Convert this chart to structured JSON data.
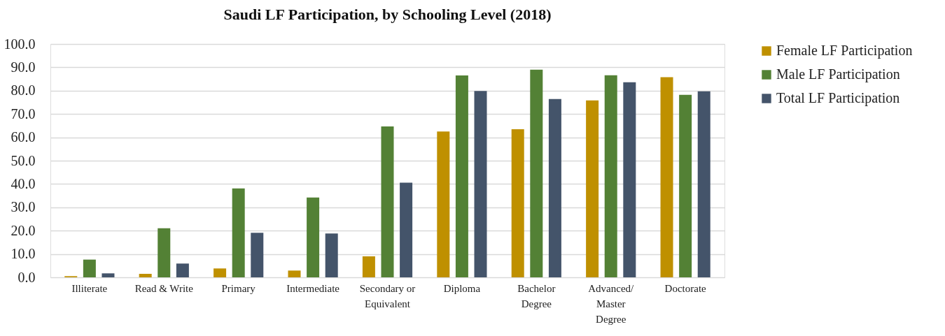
{
  "chart_data": {
    "type": "bar",
    "title": "Saudi LF Participation, by Schooling Level (2018)",
    "categories": [
      "Illiterate",
      "Read & Write",
      "Primary",
      "Intermediate",
      "Secondary or\nEquivalent",
      "Diploma",
      "Bachelor\nDegree",
      "Advanced/\nMaster\nDegree",
      "Doctorate"
    ],
    "series": [
      {
        "name": "Female LF Participation",
        "color": "#bf9000",
        "values": [
          0.5,
          1.5,
          3.8,
          2.9,
          9.0,
          62.5,
          63.5,
          75.8,
          85.8
        ]
      },
      {
        "name": "Male LF Participation",
        "color": "#538135",
        "values": [
          7.6,
          21.0,
          38.1,
          34.2,
          64.7,
          86.5,
          89.0,
          86.6,
          78.2
        ]
      },
      {
        "name": "Total LF Participation",
        "color": "#44546a",
        "values": [
          1.7,
          5.9,
          19.1,
          18.8,
          40.6,
          79.9,
          76.4,
          83.6,
          79.7
        ]
      }
    ],
    "ylim": [
      0,
      100
    ],
    "yticks": [
      {
        "value": 0,
        "label": "0.0"
      },
      {
        "value": 10,
        "label": "10.0"
      },
      {
        "value": 20,
        "label": "20.0"
      },
      {
        "value": 30,
        "label": "30.0"
      },
      {
        "value": 40,
        "label": "40.0"
      },
      {
        "value": 50,
        "label": "50.0"
      },
      {
        "value": 60,
        "label": "60.0"
      },
      {
        "value": 70,
        "label": "70.0"
      },
      {
        "value": 80,
        "label": "80.0"
      },
      {
        "value": 90,
        "label": "90.0"
      },
      {
        "value": 100,
        "label": "100.0"
      }
    ],
    "grid": "y",
    "legend": "right"
  }
}
